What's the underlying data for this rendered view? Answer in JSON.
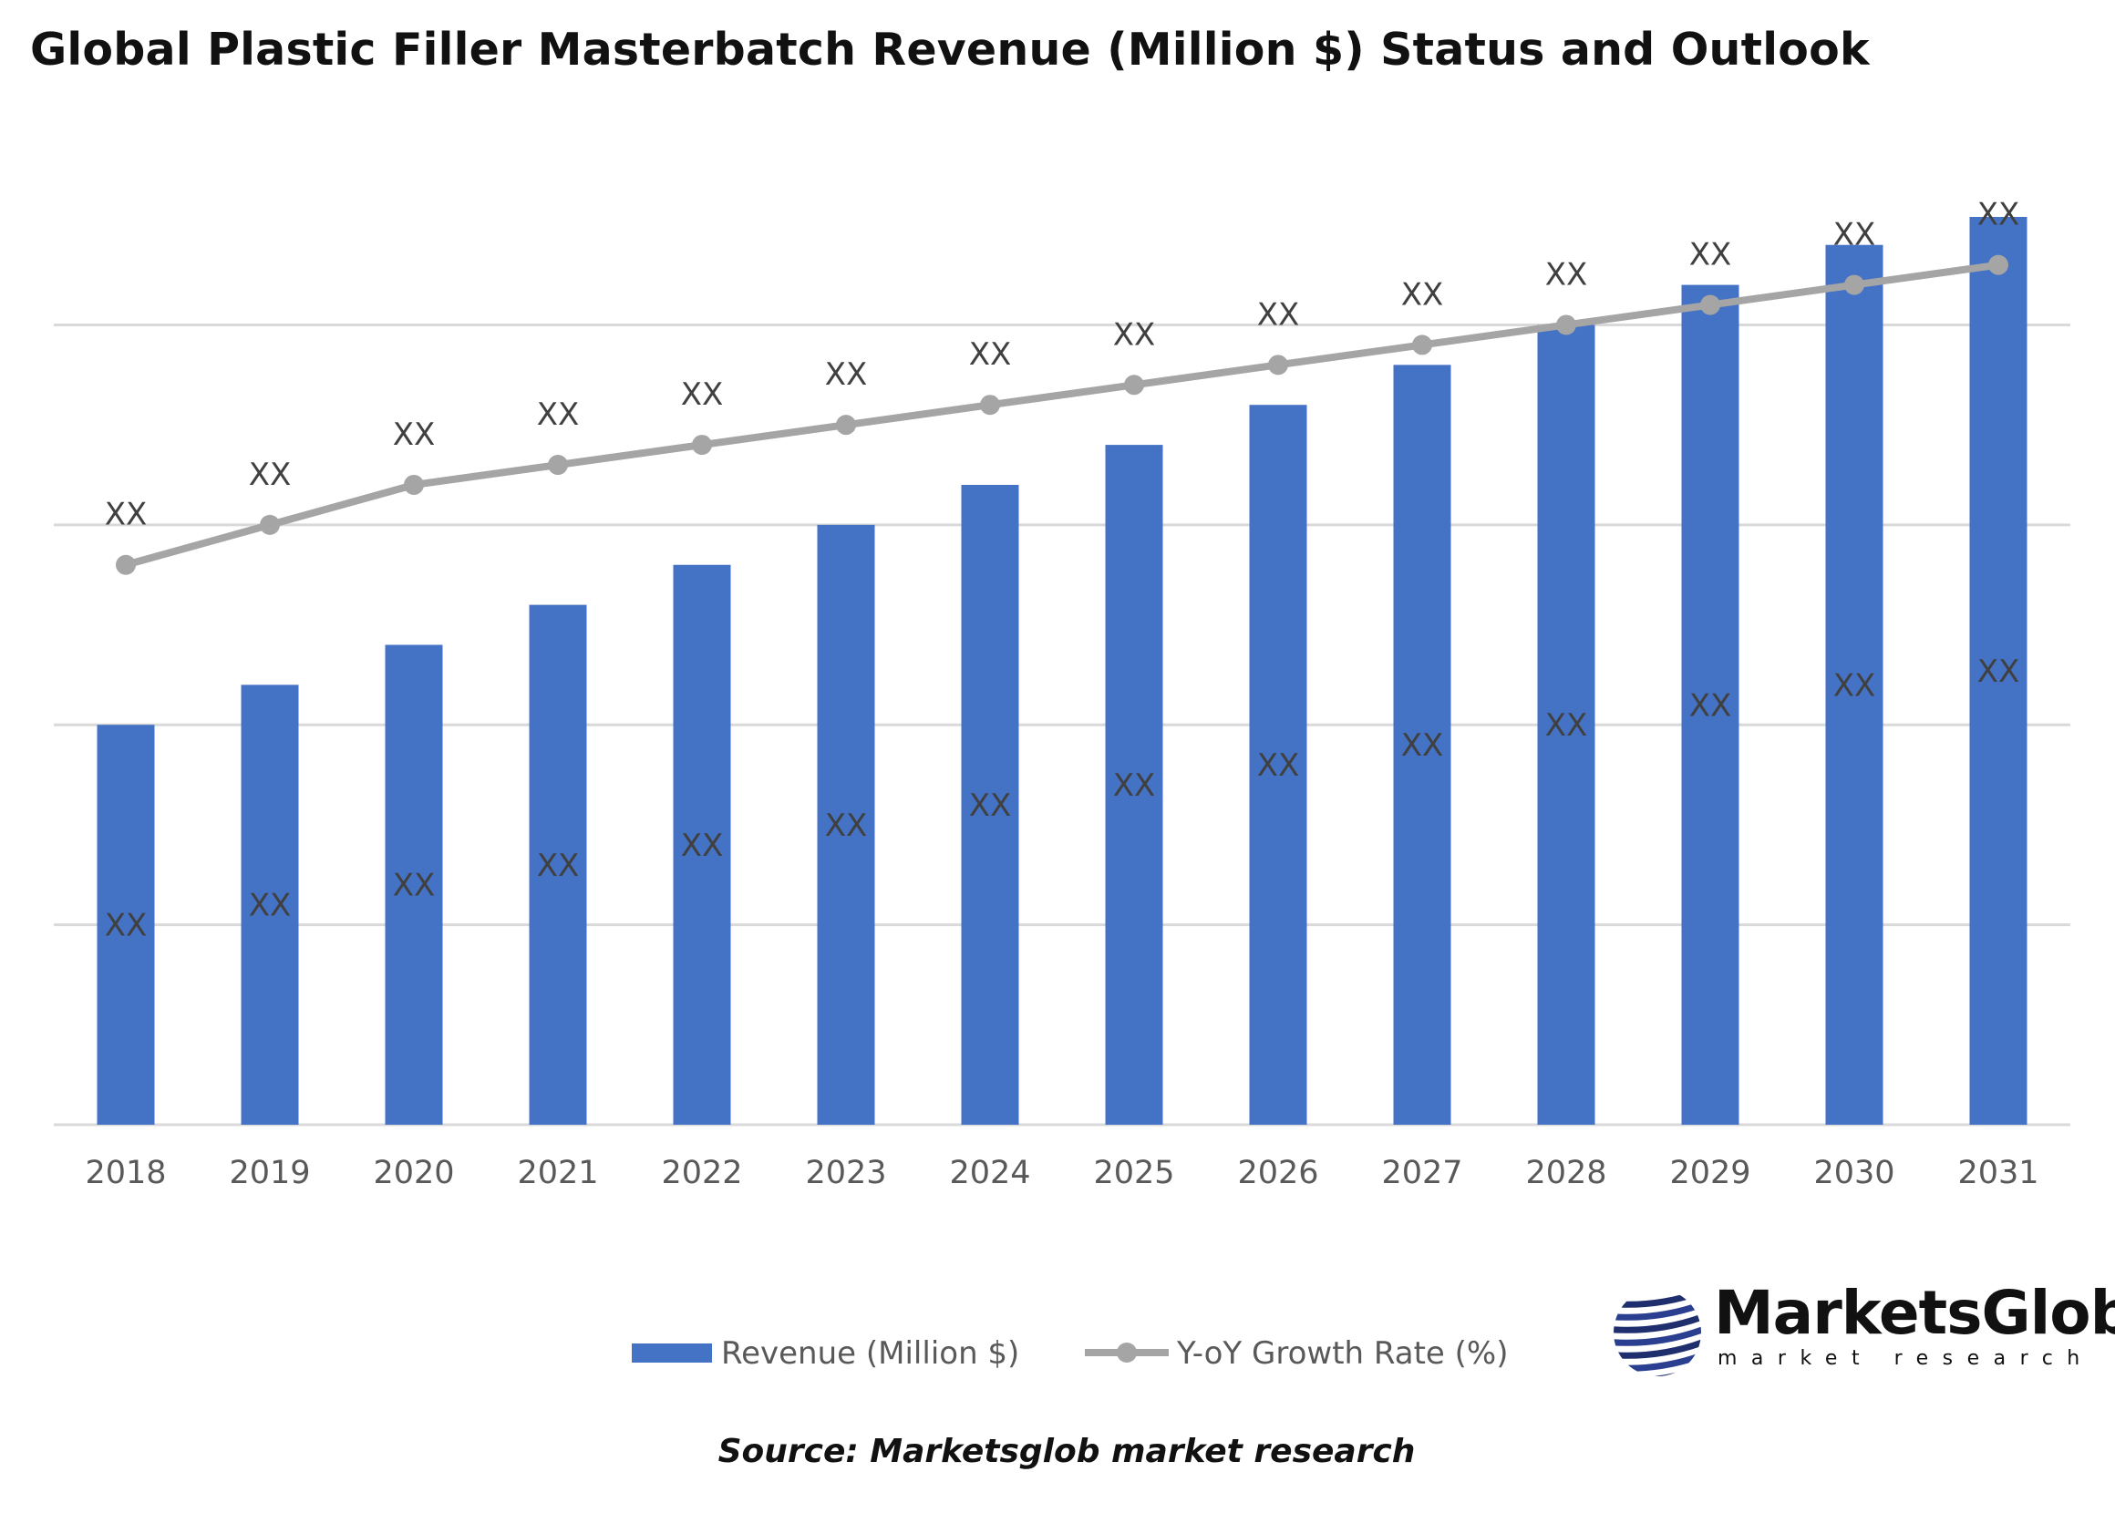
{
  "chart_data": {
    "type": "bar+line",
    "title": "Global Plastic Filler Masterbatch Revenue (Million $) Status and Outlook",
    "categories": [
      "2018",
      "2019",
      "2020",
      "2021",
      "2022",
      "2023",
      "2024",
      "2025",
      "2026",
      "2027",
      "2028",
      "2029",
      "2030",
      "2031"
    ],
    "series": [
      {
        "name": "Revenue (Million $)",
        "type": "bar",
        "color": "#4472C4",
        "values": [
          2.0,
          2.2,
          2.4,
          2.6,
          2.8,
          3.0,
          3.2,
          3.4,
          3.6,
          3.8,
          4.0,
          4.2,
          4.4,
          4.6
        ],
        "data_labels": [
          "XX",
          "XX",
          "XX",
          "XX",
          "XX",
          "XX",
          "XX",
          "XX",
          "XX",
          "XX",
          "XX",
          "XX",
          "XX",
          "XX"
        ]
      },
      {
        "name": "Y-oY Growth Rate (%)",
        "type": "line",
        "color": "#A5A5A5",
        "values": [
          2.8,
          3.0,
          3.2,
          3.3,
          3.4,
          3.5,
          3.6,
          3.7,
          3.8,
          3.9,
          4.0,
          4.1,
          4.2,
          4.3
        ],
        "data_labels": [
          "XX",
          "XX",
          "XX",
          "XX",
          "XX",
          "XX",
          "XX",
          "XX",
          "XX",
          "XX",
          "XX",
          "XX",
          "XX",
          "XX"
        ]
      }
    ],
    "xlabel": "",
    "ylabel": "",
    "ylim": [
      0,
      4.54
    ],
    "y_tick_labels_shown": false,
    "grid": true,
    "legend": "bottom"
  },
  "source": "Source: Marketsglob market research",
  "logo": {
    "name": "MarketsGlob",
    "tagline": "market research"
  }
}
